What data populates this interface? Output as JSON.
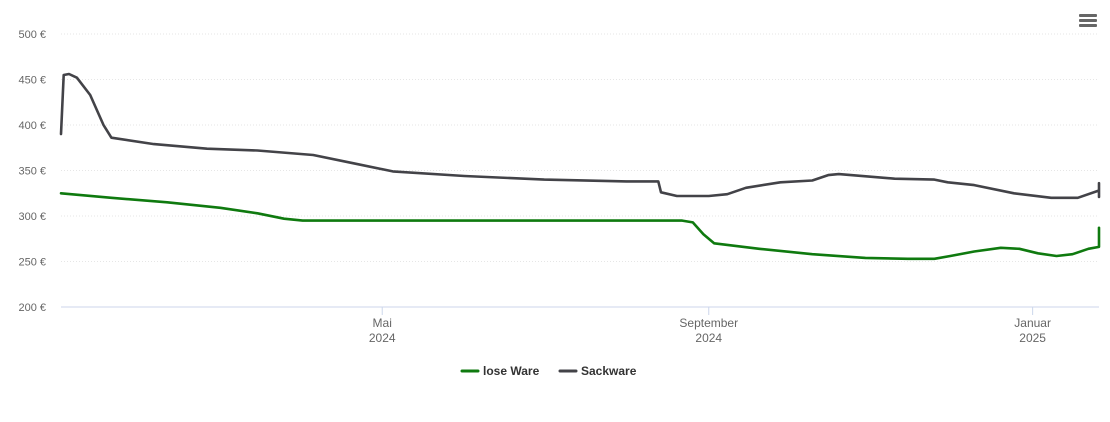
{
  "menu": {
    "icon": "hamburger-menu-icon"
  },
  "chart_data": {
    "type": "line",
    "title": "",
    "xlabel": "",
    "ylabel": "",
    "ylim": [
      200,
      500
    ],
    "y_ticks": [
      {
        "value": 200,
        "label": "200 €"
      },
      {
        "value": 250,
        "label": "250 €"
      },
      {
        "value": 300,
        "label": "300 €"
      },
      {
        "value": 350,
        "label": "350 €"
      },
      {
        "value": 400,
        "label": "400 €"
      },
      {
        "value": 450,
        "label": "450 €"
      },
      {
        "value": 500,
        "label": "500 €"
      }
    ],
    "xlim": [
      "2024-01-01",
      "2025-01-26"
    ],
    "x_ticks": [
      {
        "value": "2024-05-01",
        "line1": "Mai",
        "line2": "2024"
      },
      {
        "value": "2024-09-01",
        "line1": "September",
        "line2": "2024"
      },
      {
        "value": "2025-01-01",
        "line1": "Januar",
        "line2": "2025"
      }
    ],
    "grid": true,
    "legend_position": "bottom-center",
    "series": [
      {
        "name": "lose Ware",
        "color": "#0f7a0f",
        "points": [
          [
            "2024-01-01",
            325
          ],
          [
            "2024-01-20",
            320
          ],
          [
            "2024-02-10",
            315
          ],
          [
            "2024-03-01",
            309
          ],
          [
            "2024-03-15",
            303
          ],
          [
            "2024-03-25",
            297
          ],
          [
            "2024-04-01",
            295
          ],
          [
            "2024-05-01",
            295
          ],
          [
            "2024-06-01",
            295
          ],
          [
            "2024-07-01",
            295
          ],
          [
            "2024-08-01",
            295
          ],
          [
            "2024-08-22",
            295
          ],
          [
            "2024-08-26",
            293
          ],
          [
            "2024-08-30",
            280
          ],
          [
            "2024-09-03",
            270
          ],
          [
            "2024-09-20",
            264
          ],
          [
            "2024-10-10",
            258
          ],
          [
            "2024-10-30",
            254
          ],
          [
            "2024-11-15",
            253
          ],
          [
            "2024-11-25",
            253
          ],
          [
            "2024-12-01",
            256
          ],
          [
            "2024-12-10",
            261
          ],
          [
            "2024-12-20",
            265
          ],
          [
            "2024-12-27",
            264
          ],
          [
            "2025-01-03",
            259
          ],
          [
            "2025-01-10",
            256
          ],
          [
            "2025-01-16",
            258
          ],
          [
            "2025-01-22",
            264
          ],
          [
            "2025-01-30",
            266
          ],
          [
            "2025-02-04",
            269
          ],
          [
            "2025-02-05",
            278
          ],
          [
            "2025-02-07",
            280
          ],
          [
            "2025-02-08",
            287
          ]
        ]
      },
      {
        "name": "Sackware",
        "color": "#434348",
        "points": [
          [
            "2024-01-01",
            390
          ],
          [
            "2024-01-02",
            455
          ],
          [
            "2024-01-04",
            456
          ],
          [
            "2024-01-07",
            452
          ],
          [
            "2024-01-12",
            433
          ],
          [
            "2024-01-17",
            400
          ],
          [
            "2024-01-20",
            386
          ],
          [
            "2024-02-05",
            379
          ],
          [
            "2024-02-25",
            374
          ],
          [
            "2024-03-15",
            372
          ],
          [
            "2024-04-05",
            367
          ],
          [
            "2024-04-20",
            358
          ],
          [
            "2024-05-05",
            349
          ],
          [
            "2024-06-01",
            344
          ],
          [
            "2024-07-01",
            340
          ],
          [
            "2024-08-01",
            338
          ],
          [
            "2024-08-13",
            338
          ],
          [
            "2024-08-14",
            326
          ],
          [
            "2024-08-20",
            322
          ],
          [
            "2024-09-01",
            322
          ],
          [
            "2024-09-08",
            324
          ],
          [
            "2024-09-15",
            331
          ],
          [
            "2024-09-28",
            337
          ],
          [
            "2024-10-10",
            339
          ],
          [
            "2024-10-16",
            345
          ],
          [
            "2024-10-20",
            346
          ],
          [
            "2024-11-10",
            341
          ],
          [
            "2024-11-25",
            340
          ],
          [
            "2024-11-30",
            337
          ],
          [
            "2024-12-10",
            334
          ],
          [
            "2024-12-25",
            325
          ],
          [
            "2025-01-08",
            320
          ],
          [
            "2025-01-18",
            320
          ],
          [
            "2025-01-28",
            328
          ],
          [
            "2025-02-04",
            331
          ],
          [
            "2025-02-05",
            321
          ],
          [
            "2025-02-06",
            328
          ],
          [
            "2025-02-08",
            336
          ]
        ]
      }
    ]
  }
}
